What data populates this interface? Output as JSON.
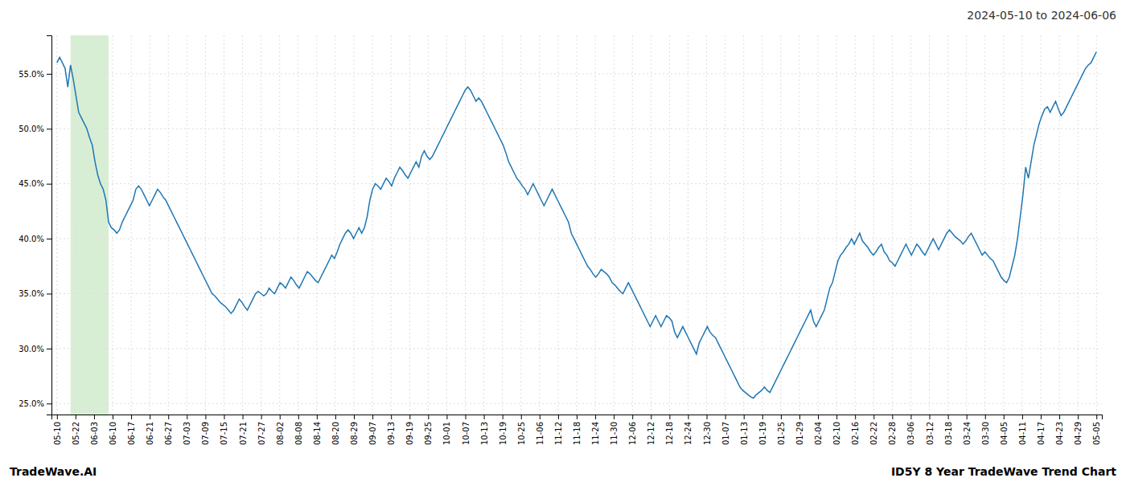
{
  "chart_data": {
    "type": "line",
    "title": "2024-05-10 to 2024-06-06",
    "annotations": [
      "TradeWave.AI",
      "ID5Y 8 Year TradeWave Trend Chart"
    ],
    "grid": true,
    "ylim": [
      24.0,
      58.5
    ],
    "yticks": [
      {
        "value": 25.0,
        "label": "25.0%"
      },
      {
        "value": 30.0,
        "label": "30.0%"
      },
      {
        "value": 35.0,
        "label": "35.0%"
      },
      {
        "value": 40.0,
        "label": "40.0%"
      },
      {
        "value": 45.0,
        "label": "45.0%"
      },
      {
        "value": 50.0,
        "label": "50.0%"
      },
      {
        "value": 55.0,
        "label": "55.0%"
      }
    ],
    "xlim": [
      -2,
      384
    ],
    "xticks": [
      {
        "value": 0,
        "label": "05-10"
      },
      {
        "value": 6.8214,
        "label": "05-22"
      },
      {
        "value": 13.6429,
        "label": "06-03"
      },
      {
        "value": 20.4643,
        "label": "06-10"
      },
      {
        "value": 27.2857,
        "label": "06-17"
      },
      {
        "value": 34.1071,
        "label": "06-21"
      },
      {
        "value": 40.9286,
        "label": "06-27"
      },
      {
        "value": 47.75,
        "label": "07-03"
      },
      {
        "value": 54.5714,
        "label": "07-09"
      },
      {
        "value": 61.3929,
        "label": "07-15"
      },
      {
        "value": 68.2143,
        "label": "07-21"
      },
      {
        "value": 75.0357,
        "label": "07-27"
      },
      {
        "value": 81.8571,
        "label": "08-02"
      },
      {
        "value": 88.6786,
        "label": "08-08"
      },
      {
        "value": 95.5,
        "label": "08-14"
      },
      {
        "value": 102.3214,
        "label": "08-20"
      },
      {
        "value": 109.1429,
        "label": "08-29"
      },
      {
        "value": 115.9643,
        "label": "09-07"
      },
      {
        "value": 122.7857,
        "label": "09-13"
      },
      {
        "value": 129.6071,
        "label": "09-19"
      },
      {
        "value": 136.4286,
        "label": "09-25"
      },
      {
        "value": 143.25,
        "label": "10-01"
      },
      {
        "value": 150.0714,
        "label": "10-07"
      },
      {
        "value": 156.8929,
        "label": "10-13"
      },
      {
        "value": 163.7143,
        "label": "10-19"
      },
      {
        "value": 170.5357,
        "label": "10-25"
      },
      {
        "value": 177.3571,
        "label": "11-06"
      },
      {
        "value": 184.1786,
        "label": "11-12"
      },
      {
        "value": 191,
        "label": "11-18"
      },
      {
        "value": 197.8214,
        "label": "11-24"
      },
      {
        "value": 204.6429,
        "label": "11-30"
      },
      {
        "value": 211.4643,
        "label": "12-06"
      },
      {
        "value": 218.2857,
        "label": "12-12"
      },
      {
        "value": 225.1071,
        "label": "12-18"
      },
      {
        "value": 231.9286,
        "label": "12-24"
      },
      {
        "value": 238.75,
        "label": "12-30"
      },
      {
        "value": 245.5714,
        "label": "01-07"
      },
      {
        "value": 252.3929,
        "label": "01-13"
      },
      {
        "value": 259.2143,
        "label": "01-19"
      },
      {
        "value": 266.0357,
        "label": "01-25"
      },
      {
        "value": 272.8571,
        "label": "01-29"
      },
      {
        "value": 279.6786,
        "label": "02-04"
      },
      {
        "value": 286.5,
        "label": "02-10"
      },
      {
        "value": 293.3214,
        "label": "02-16"
      },
      {
        "value": 300.1429,
        "label": "02-22"
      },
      {
        "value": 306.9643,
        "label": "02-28"
      },
      {
        "value": 313.7857,
        "label": "03-06"
      },
      {
        "value": 320.6071,
        "label": "03-12"
      },
      {
        "value": 327.4286,
        "label": "03-18"
      },
      {
        "value": 334.25,
        "label": "03-24"
      },
      {
        "value": 341.0714,
        "label": "03-30"
      },
      {
        "value": 347.8929,
        "label": "04-05"
      },
      {
        "value": 354.7143,
        "label": "04-11"
      },
      {
        "value": 361.5357,
        "label": "04-17"
      },
      {
        "value": 368.3571,
        "label": "04-23"
      },
      {
        "value": 375.1786,
        "label": "04-29"
      },
      {
        "value": 382,
        "label": "05-05"
      }
    ],
    "highlight_range": [
      5,
      19
    ],
    "highlight_color": "#d8eed4",
    "values": [
      56.0,
      56.5,
      56.0,
      55.5,
      53.8,
      55.8,
      54.5,
      53.0,
      51.5,
      51.0,
      50.5,
      50.0,
      49.2,
      48.5,
      47.0,
      45.8,
      45.0,
      44.5,
      43.5,
      41.5,
      41.0,
      40.8,
      40.5,
      40.8,
      41.5,
      42.0,
      42.5,
      43.0,
      43.5,
      44.5,
      44.8,
      44.5,
      44.0,
      43.5,
      43.0,
      43.5,
      44.0,
      44.5,
      44.2,
      43.8,
      43.5,
      43.0,
      42.5,
      42.0,
      41.5,
      41.0,
      40.5,
      40.0,
      39.5,
      39.0,
      38.5,
      38.0,
      37.5,
      37.0,
      36.5,
      36.0,
      35.5,
      35.0,
      34.8,
      34.5,
      34.2,
      34.0,
      33.8,
      33.5,
      33.2,
      33.5,
      34.0,
      34.5,
      34.2,
      33.8,
      33.5,
      34.0,
      34.5,
      35.0,
      35.2,
      35.0,
      34.8,
      35.0,
      35.5,
      35.2,
      35.0,
      35.5,
      36.0,
      35.8,
      35.5,
      36.0,
      36.5,
      36.2,
      35.8,
      35.5,
      36.0,
      36.5,
      37.0,
      36.8,
      36.5,
      36.2,
      36.0,
      36.5,
      37.0,
      37.5,
      38.0,
      38.5,
      38.2,
      38.8,
      39.5,
      40.0,
      40.5,
      40.8,
      40.5,
      40.0,
      40.5,
      41.0,
      40.5,
      41.0,
      42.0,
      43.5,
      44.5,
      45.0,
      44.8,
      44.5,
      45.0,
      45.5,
      45.2,
      44.8,
      45.5,
      46.0,
      46.5,
      46.2,
      45.8,
      45.5,
      46.0,
      46.5,
      47.0,
      46.5,
      47.5,
      48.0,
      47.5,
      47.2,
      47.5,
      48.0,
      48.5,
      49.0,
      49.5,
      50.0,
      50.5,
      51.0,
      51.5,
      52.0,
      52.5,
      53.0,
      53.5,
      53.8,
      53.5,
      53.0,
      52.5,
      52.8,
      52.5,
      52.0,
      51.5,
      51.0,
      50.5,
      50.0,
      49.5,
      49.0,
      48.5,
      47.8,
      47.0,
      46.5,
      46.0,
      45.5,
      45.2,
      44.8,
      44.5,
      44.0,
      44.5,
      45.0,
      44.5,
      44.0,
      43.5,
      43.0,
      43.5,
      44.0,
      44.5,
      44.0,
      43.5,
      43.0,
      42.5,
      42.0,
      41.5,
      40.5,
      40.0,
      39.5,
      39.0,
      38.5,
      38.0,
      37.5,
      37.2,
      36.8,
      36.5,
      36.8,
      37.2,
      37.0,
      36.8,
      36.5,
      36.0,
      35.8,
      35.5,
      35.2,
      35.0,
      35.5,
      36.0,
      35.5,
      35.0,
      34.5,
      34.0,
      33.5,
      33.0,
      32.5,
      32.0,
      32.5,
      33.0,
      32.5,
      32.0,
      32.5,
      33.0,
      32.8,
      32.5,
      31.5,
      31.0,
      31.5,
      32.0,
      31.5,
      31.0,
      30.5,
      30.0,
      29.5,
      30.5,
      31.0,
      31.5,
      32.0,
      31.5,
      31.2,
      31.0,
      30.5,
      30.0,
      29.5,
      29.0,
      28.5,
      28.0,
      27.5,
      27.0,
      26.5,
      26.2,
      26.0,
      25.8,
      25.6,
      25.5,
      25.8,
      26.0,
      26.2,
      26.5,
      26.2,
      26.0,
      26.5,
      27.0,
      27.5,
      28.0,
      28.5,
      29.0,
      29.5,
      30.0,
      30.5,
      31.0,
      31.5,
      32.0,
      32.5,
      33.0,
      33.5,
      32.5,
      32.0,
      32.5,
      33.0,
      33.5,
      34.5,
      35.5,
      36.0,
      37.0,
      38.0,
      38.5,
      38.8,
      39.2,
      39.5,
      40.0,
      39.5,
      40.0,
      40.5,
      39.8,
      39.5,
      39.2,
      38.8,
      38.5,
      38.8,
      39.2,
      39.5,
      38.8,
      38.5,
      38.0,
      37.8,
      37.5,
      38.0,
      38.5,
      39.0,
      39.5,
      39.0,
      38.5,
      39.0,
      39.5,
      39.2,
      38.8,
      38.5,
      39.0,
      39.5,
      40.0,
      39.5,
      39.0,
      39.5,
      40.0,
      40.5,
      40.8,
      40.5,
      40.2,
      40.0,
      39.8,
      39.5,
      39.8,
      40.2,
      40.5,
      40.0,
      39.5,
      39.0,
      38.5,
      38.8,
      38.5,
      38.2,
      38.0,
      37.5,
      37.0,
      36.5,
      36.2,
      36.0,
      36.5,
      37.5,
      38.5,
      40.0,
      42.0,
      44.0,
      46.5,
      45.5,
      47.0,
      48.5,
      49.5,
      50.5,
      51.2,
      51.8,
      52.0,
      51.5,
      52.0,
      52.5,
      51.8,
      51.2,
      51.5,
      52.0,
      52.5,
      53.0,
      53.5,
      54.0,
      54.5,
      55.0,
      55.5,
      55.8,
      56.0,
      56.5,
      57.0
    ]
  }
}
